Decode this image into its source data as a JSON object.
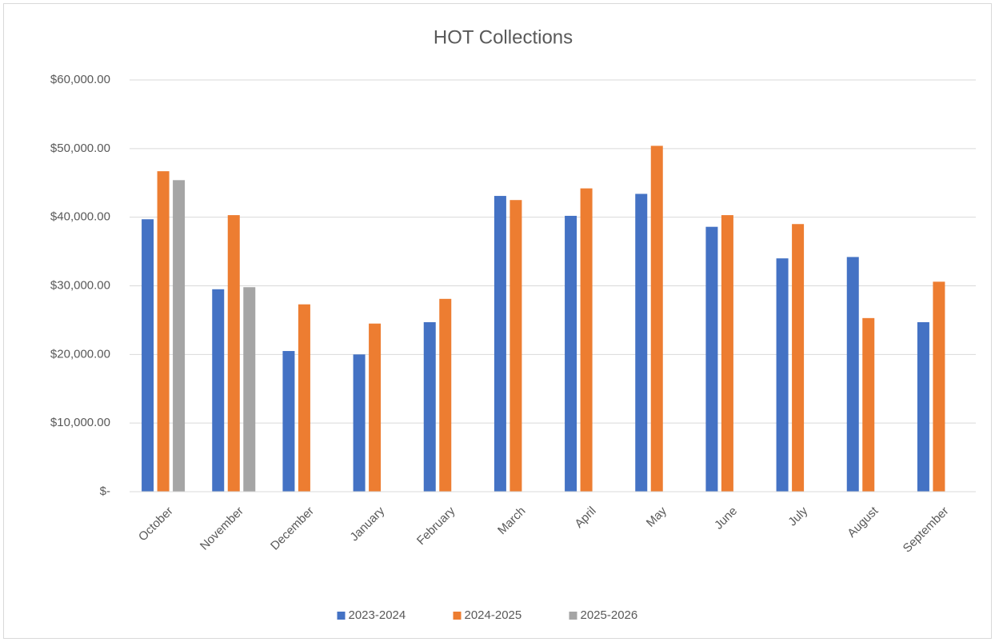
{
  "chart_data": {
    "type": "bar",
    "title": "HOT Collections",
    "categories": [
      "October",
      "November",
      "December",
      "January",
      "February",
      "March",
      "April",
      "May",
      "June",
      "July",
      "August",
      "September"
    ],
    "series": [
      {
        "name": "2023-2024",
        "color": "#4472c4",
        "values": [
          39700,
          29500,
          20500,
          20000,
          24700,
          43100,
          40200,
          43400,
          38600,
          34000,
          34200,
          24700
        ]
      },
      {
        "name": "2024-2025",
        "color": "#ed7d31",
        "values": [
          46700,
          40300,
          27300,
          24500,
          28100,
          42500,
          44200,
          50400,
          40300,
          39000,
          25300,
          30600
        ]
      },
      {
        "name": "2025-2026",
        "color": "#a5a5a5",
        "values": [
          45400,
          29800,
          null,
          null,
          null,
          null,
          null,
          null,
          null,
          null,
          null,
          null
        ]
      }
    ],
    "ylim": [
      0,
      60000
    ],
    "yticks": [
      {
        "value": 0,
        "label": "$-"
      },
      {
        "value": 10000,
        "label": "$10,000.00"
      },
      {
        "value": 20000,
        "label": "$20,000.00"
      },
      {
        "value": 30000,
        "label": "$30,000.00"
      },
      {
        "value": 40000,
        "label": "$40,000.00"
      },
      {
        "value": 50000,
        "label": "$50,000.00"
      },
      {
        "value": 60000,
        "label": "$60,000.00"
      }
    ],
    "grid": true,
    "legend": "bottom"
  }
}
